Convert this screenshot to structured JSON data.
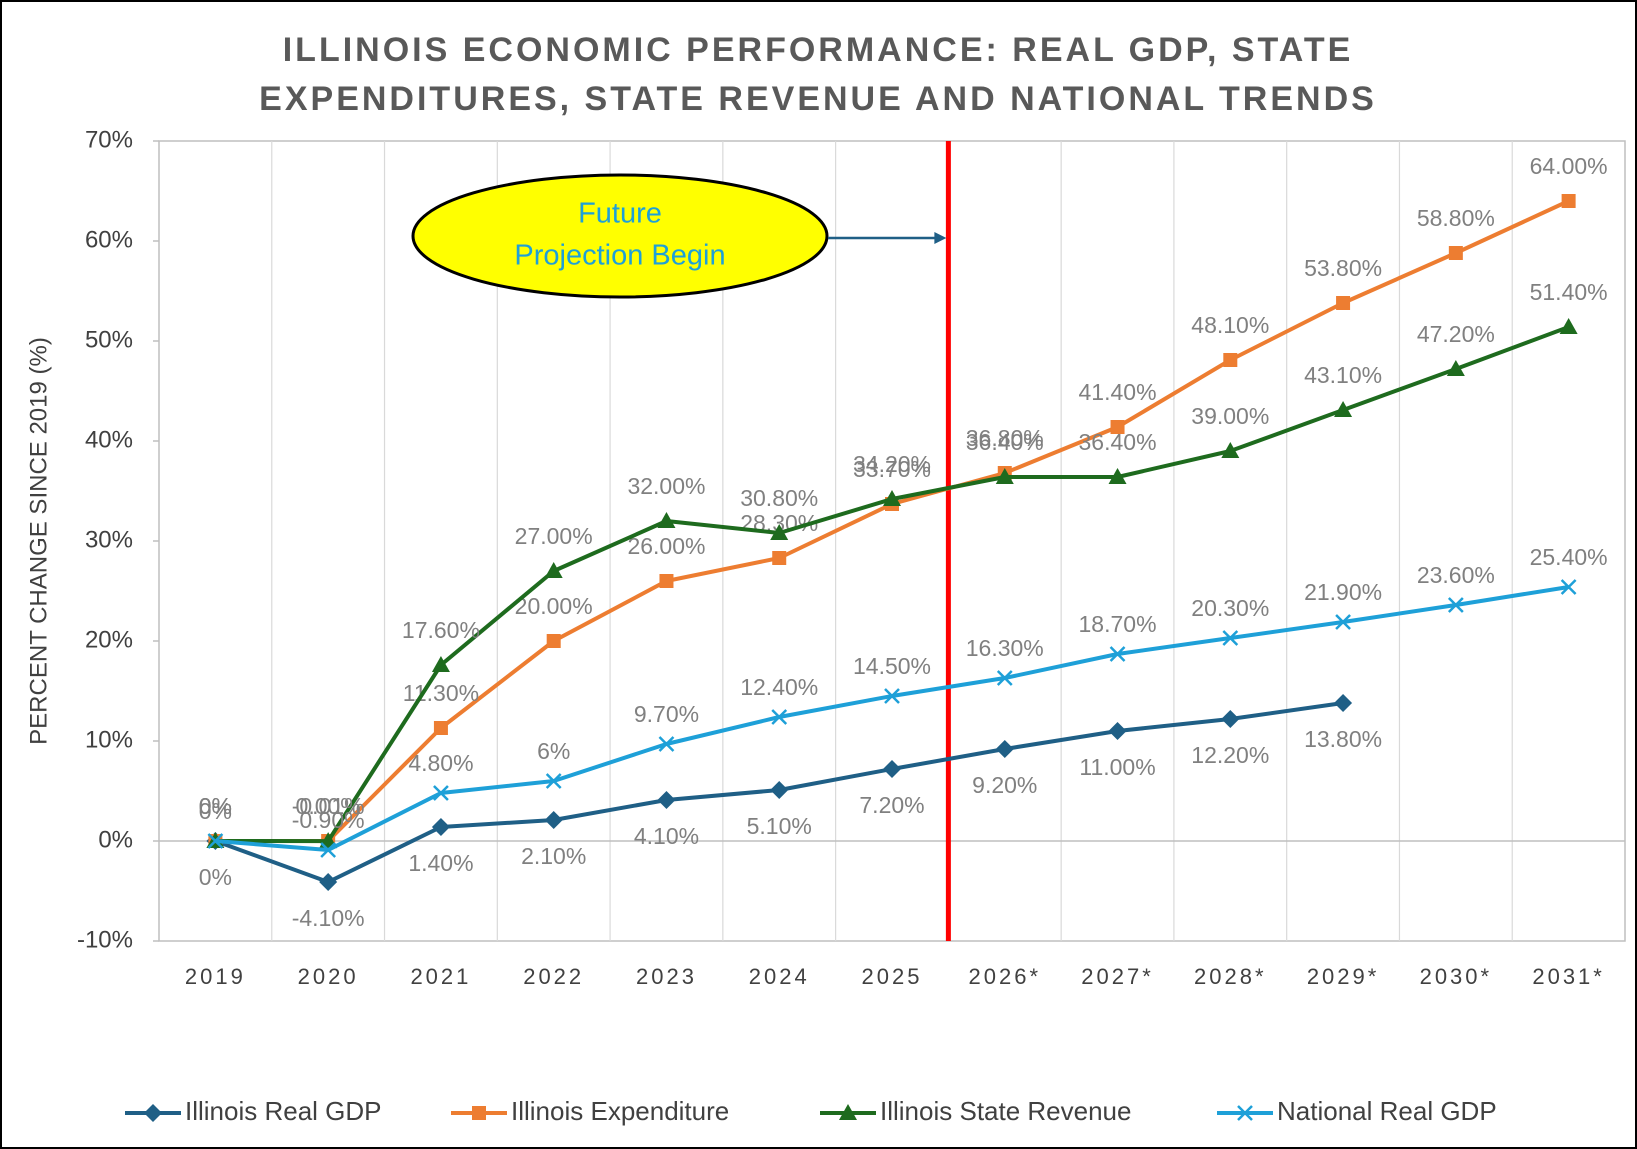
{
  "chart_data": {
    "type": "line",
    "title": [
      "ILLINOIS ECONOMIC PERFORMANCE: REAL GDP, STATE",
      "EXPENDITURES, STATE REVENUE AND NATIONAL TRENDS"
    ],
    "y_label": "PERCENT CHANGE SINCE 2019 (%)",
    "annotation": [
      "Future",
      "Projection Begin"
    ],
    "categories": [
      "2019",
      "2020",
      "2021",
      "2022",
      "2023",
      "2024",
      "2025",
      "2026*",
      "2027*",
      "2028*",
      "2029*",
      "2030*",
      "2031*"
    ],
    "series": [
      {
        "name": "Illinois Real GDP",
        "color": "#1f5f86",
        "marker": "diamond",
        "values": [
          0,
          -4.1,
          1.4,
          2.1,
          4.1,
          5.1,
          7.2,
          9.2,
          11.0,
          12.2,
          13.8,
          null,
          null
        ],
        "value_labels": [
          "0%",
          "-4.10%",
          "1.40%",
          "2.10%",
          "4.10%",
          "5.10%",
          "7.20%",
          "9.20%",
          "11.00%",
          "12.20%",
          "13.80%",
          null,
          null
        ]
      },
      {
        "name": "Illinois Expenditure",
        "color": "#ed7d31",
        "marker": "square",
        "values": [
          0,
          0,
          11.3,
          20,
          26,
          28.3,
          33.7,
          36.8,
          41.4,
          48.1,
          53.8,
          58.8,
          64
        ],
        "value_labels": [
          "0%",
          "0.00%",
          "11.30%",
          "20.00%",
          "26.00%",
          "28.30%",
          "33.70%",
          "36.80%",
          "41.40%",
          "48.10%",
          "53.80%",
          "58.80%",
          "64.00%"
        ]
      },
      {
        "name": "Illinois State Revenue",
        "color": "#1e6b1e",
        "marker": "triangle",
        "values": [
          0,
          -0.01,
          17.6,
          27,
          32,
          30.8,
          34.2,
          36.4,
          36.4,
          39,
          43.1,
          47.2,
          51.4
        ],
        "value_labels": [
          "0%",
          "-0.01%",
          "17.60%",
          "27.00%",
          "32.00%",
          "30.80%",
          "34.20%",
          "36.40%",
          "36.40%",
          "39.00%",
          "43.10%",
          "47.20%",
          "51.40%"
        ]
      },
      {
        "name": "National Real GDP",
        "color": "#1ea0d8",
        "marker": "x",
        "values": [
          0,
          -0.9,
          4.8,
          6,
          9.7,
          12.4,
          14.5,
          16.3,
          18.7,
          20.3,
          21.9,
          23.6,
          25.4
        ],
        "value_labels": [
          "0%",
          "-0.90%",
          "4.80%",
          "6%",
          "9.70%",
          "12.40%",
          "14.50%",
          "16.30%",
          "18.70%",
          "20.30%",
          "21.90%",
          "23.60%",
          "25.40%"
        ]
      }
    ],
    "ylim": [
      -10,
      70
    ],
    "yticks": [
      {
        "value": -10,
        "label": "-10%"
      },
      {
        "value": 0,
        "label": "0%"
      },
      {
        "value": 10,
        "label": "10%"
      },
      {
        "value": 20,
        "label": "20%"
      },
      {
        "value": 30,
        "label": "30%"
      },
      {
        "value": 40,
        "label": "40%"
      },
      {
        "value": 50,
        "label": "50%"
      },
      {
        "value": 60,
        "label": "60%"
      },
      {
        "value": 70,
        "label": "70%"
      }
    ],
    "legend": "bottom"
  }
}
